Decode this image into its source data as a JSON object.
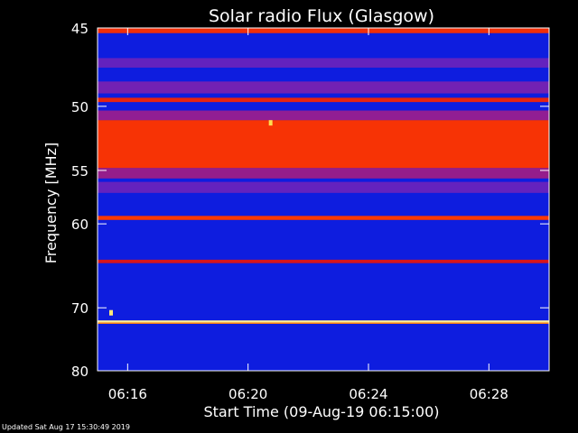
{
  "chart_data": {
    "type": "heatmap",
    "title": "Solar radio Flux (Glasgow)",
    "xlabel": "Start Time (09-Aug-19 06:15:00)",
    "ylabel": "Frequency [MHz]",
    "x_unit": "minutes since 06:15:00",
    "xlim": [
      0,
      15
    ],
    "ylim": [
      45,
      80
    ],
    "y_scale": "reciprocal",
    "x_ticks": [
      {
        "value": 1,
        "label": "06:16"
      },
      {
        "value": 5,
        "label": "06:20"
      },
      {
        "value": 9,
        "label": "06:24"
      },
      {
        "value": 13,
        "label": "06:28"
      }
    ],
    "y_ticks": [
      {
        "value": 45,
        "label": "45"
      },
      {
        "value": 50,
        "label": "50"
      },
      {
        "value": 55,
        "label": "55"
      },
      {
        "value": 60,
        "label": "60"
      },
      {
        "value": 70,
        "label": "70"
      },
      {
        "value": 80,
        "label": "80"
      }
    ],
    "colorscale": [
      "#00008c",
      "#1428ff",
      "#8a1fa0",
      "#d0101e",
      "#ff3a00",
      "#ffd020",
      "#ffffcc"
    ],
    "background_level": 0.12,
    "bands": [
      {
        "from_mhz": 45.0,
        "to_mhz": 45.3,
        "level": 0.62
      },
      {
        "from_mhz": 46.8,
        "to_mhz": 47.4,
        "level": 0.28
      },
      {
        "from_mhz": 48.3,
        "to_mhz": 49.1,
        "level": 0.3
      },
      {
        "from_mhz": 49.4,
        "to_mhz": 49.7,
        "level": 0.58
      },
      {
        "from_mhz": 50.3,
        "to_mhz": 51.0,
        "level": 0.35
      },
      {
        "from_mhz": 51.0,
        "to_mhz": 54.8,
        "level": 0.64
      },
      {
        "from_mhz": 54.8,
        "to_mhz": 55.7,
        "level": 0.36
      },
      {
        "from_mhz": 56.0,
        "to_mhz": 57.0,
        "level": 0.28
      },
      {
        "from_mhz": 59.2,
        "to_mhz": 59.6,
        "level": 0.66
      },
      {
        "from_mhz": 63.9,
        "to_mhz": 64.3,
        "level": 0.52
      },
      {
        "from_mhz": 71.8,
        "to_mhz": 72.1,
        "level": 0.95
      },
      {
        "from_mhz": 72.1,
        "to_mhz": 72.3,
        "level": 0.75
      }
    ],
    "spots": [
      {
        "x": 5.75,
        "mhz": 51.2,
        "level": 0.88
      },
      {
        "x": 0.45,
        "mhz": 70.7,
        "level": 0.92
      }
    ]
  },
  "footer": {
    "updated": "Updated Sat Aug 17 15:30:49 2019"
  }
}
